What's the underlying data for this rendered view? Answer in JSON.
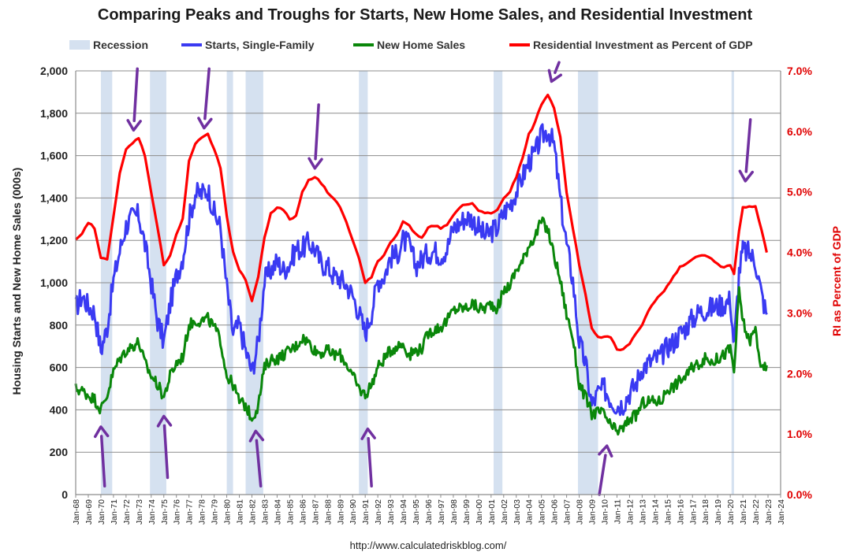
{
  "chart_data": {
    "type": "line",
    "title": "Comparing Peaks and Troughs for Starts, New Home Sales, and Residential Investment",
    "ylabel_left": "Housing Starts and New Home Sales (000s)",
    "ylabel_right": "RI as Percent of GDP",
    "source": "http://www.calculatedriskblog.com/",
    "ylim_left": [
      0,
      2000
    ],
    "ylim_right": [
      0,
      7
    ],
    "xlim": [
      1968,
      2024
    ],
    "grid": true,
    "legend_position": "top",
    "y_ticks_left": [
      "0",
      "200",
      "400",
      "600",
      "800",
      "1,000",
      "1,200",
      "1,400",
      "1,600",
      "1,800",
      "2,000"
    ],
    "y_ticks_right": [
      "0.0%",
      "1.0%",
      "2.0%",
      "3.0%",
      "4.0%",
      "5.0%",
      "6.0%",
      "7.0%"
    ],
    "x_ticks": [
      "Jan-68",
      "Jan-69",
      "Jan-70",
      "Jan-71",
      "Jan-72",
      "Jan-73",
      "Jan-74",
      "Jan-75",
      "Jan-76",
      "Jan-77",
      "Jan-78",
      "Jan-79",
      "Jan-80",
      "Jan-81",
      "Jan-82",
      "Jan-83",
      "Jan-84",
      "Jan-85",
      "Jan-86",
      "Jan-87",
      "Jan-88",
      "Jan-89",
      "Jan-90",
      "Jan-91",
      "Jan-92",
      "Jan-93",
      "Jan-94",
      "Jan-95",
      "Jan-96",
      "Jan-97",
      "Jan-98",
      "Jan-99",
      "Jan-00",
      "Jan-01",
      "Jan-02",
      "Jan-03",
      "Jan-04",
      "Jan-05",
      "Jan-06",
      "Jan-07",
      "Jan-08",
      "Jan-09",
      "Jan-10",
      "Jan-11",
      "Jan-12",
      "Jan-13",
      "Jan-14",
      "Jan-15",
      "Jan-16",
      "Jan-17",
      "Jan-18",
      "Jan-19",
      "Jan-20",
      "Jan-21",
      "Jan-22",
      "Jan-23",
      "Jan-24"
    ],
    "recessions": [
      [
        1970.0,
        1970.9
      ],
      [
        1973.9,
        1975.2
      ],
      [
        1980.0,
        1980.5
      ],
      [
        1981.5,
        1982.9
      ],
      [
        1990.5,
        1991.2
      ],
      [
        2001.2,
        2001.9
      ],
      [
        2007.9,
        2009.5
      ],
      [
        2020.1,
        2020.3
      ]
    ],
    "series": [
      {
        "name": "Starts, Single-Family",
        "axis": "left",
        "color": "#3a3af2",
        "x": [
          1968.0,
          1968.5,
          1969.0,
          1969.5,
          1970.0,
          1970.5,
          1971.0,
          1971.5,
          1972.0,
          1972.5,
          1973.0,
          1973.5,
          1974.0,
          1974.5,
          1975.0,
          1975.5,
          1976.0,
          1976.5,
          1977.0,
          1977.5,
          1978.0,
          1978.5,
          1979.0,
          1979.5,
          1980.0,
          1980.5,
          1981.0,
          1981.5,
          1982.0,
          1982.5,
          1983.0,
          1983.5,
          1984.0,
          1984.5,
          1985.0,
          1985.5,
          1986.0,
          1986.5,
          1987.0,
          1987.5,
          1988.0,
          1988.5,
          1989.0,
          1989.5,
          1990.0,
          1990.5,
          1991.0,
          1991.5,
          1992.0,
          1992.5,
          1993.0,
          1993.5,
          1994.0,
          1994.5,
          1995.0,
          1995.5,
          1996.0,
          1996.5,
          1997.0,
          1997.5,
          1998.0,
          1998.5,
          1999.0,
          1999.5,
          2000.0,
          2000.5,
          2001.0,
          2001.5,
          2002.0,
          2002.5,
          2003.0,
          2003.5,
          2004.0,
          2004.5,
          2005.0,
          2005.5,
          2006.0,
          2006.5,
          2007.0,
          2007.5,
          2008.0,
          2008.5,
          2009.0,
          2009.5,
          2010.0,
          2010.5,
          2011.0,
          2011.5,
          2012.0,
          2012.5,
          2013.0,
          2013.5,
          2014.0,
          2014.5,
          2015.0,
          2015.5,
          2016.0,
          2016.5,
          2017.0,
          2017.5,
          2018.0,
          2018.5,
          2019.0,
          2019.5,
          2020.0,
          2020.3,
          2020.7,
          2021.0,
          2021.5,
          2022.0,
          2022.5,
          2022.9
        ],
        "values": [
          880,
          940,
          890,
          860,
          680,
          790,
          1010,
          1150,
          1270,
          1310,
          1320,
          1180,
          1000,
          820,
          720,
          900,
          1030,
          1120,
          1300,
          1420,
          1420,
          1440,
          1330,
          1260,
          980,
          760,
          800,
          680,
          580,
          720,
          1010,
          1060,
          1100,
          1060,
          1090,
          1160,
          1160,
          1190,
          1160,
          1090,
          1080,
          1030,
          1020,
          990,
          940,
          860,
          760,
          860,
          1010,
          1030,
          1120,
          1130,
          1200,
          1180,
          1080,
          1110,
          1140,
          1150,
          1130,
          1160,
          1260,
          1280,
          1310,
          1300,
          1260,
          1220,
          1240,
          1260,
          1330,
          1370,
          1430,
          1500,
          1570,
          1610,
          1690,
          1720,
          1650,
          1390,
          1180,
          1010,
          720,
          620,
          420,
          480,
          500,
          450,
          420,
          430,
          480,
          520,
          600,
          620,
          640,
          650,
          700,
          720,
          760,
          790,
          830,
          860,
          870,
          880,
          890,
          900,
          920,
          700,
          1050,
          1150,
          1140,
          1100,
          940,
          850
        ]
      },
      {
        "name": "New Home Sales",
        "axis": "left",
        "color": "#0a870a",
        "x": [
          1968.0,
          1968.5,
          1969.0,
          1969.5,
          1970.0,
          1970.5,
          1971.0,
          1971.5,
          1972.0,
          1972.5,
          1973.0,
          1973.5,
          1974.0,
          1974.5,
          1975.0,
          1975.5,
          1976.0,
          1976.5,
          1977.0,
          1977.5,
          1978.0,
          1978.5,
          1979.0,
          1979.5,
          1980.0,
          1980.5,
          1981.0,
          1981.5,
          1982.0,
          1982.5,
          1983.0,
          1983.5,
          1984.0,
          1984.5,
          1985.0,
          1985.5,
          1986.0,
          1986.5,
          1987.0,
          1987.5,
          1988.0,
          1988.5,
          1989.0,
          1989.5,
          1990.0,
          1990.5,
          1991.0,
          1991.5,
          1992.0,
          1992.5,
          1993.0,
          1993.5,
          1994.0,
          1994.5,
          1995.0,
          1995.5,
          1996.0,
          1996.5,
          1997.0,
          1997.5,
          1998.0,
          1998.5,
          1999.0,
          1999.5,
          2000.0,
          2000.5,
          2001.0,
          2001.5,
          2002.0,
          2002.5,
          2003.0,
          2003.5,
          2004.0,
          2004.5,
          2005.0,
          2005.5,
          2006.0,
          2006.5,
          2007.0,
          2007.5,
          2008.0,
          2008.5,
          2009.0,
          2009.5,
          2010.0,
          2010.5,
          2011.0,
          2011.5,
          2012.0,
          2012.5,
          2013.0,
          2013.5,
          2014.0,
          2014.5,
          2015.0,
          2015.5,
          2016.0,
          2016.5,
          2017.0,
          2017.5,
          2018.0,
          2018.5,
          2019.0,
          2019.5,
          2020.0,
          2020.3,
          2020.7,
          2021.0,
          2021.5,
          2022.0,
          2022.5,
          2022.9
        ],
        "values": [
          500,
          490,
          470,
          450,
          400,
          470,
          580,
          640,
          680,
          700,
          720,
          620,
          560,
          520,
          460,
          560,
          620,
          650,
          800,
          820,
          820,
          830,
          790,
          730,
          560,
          520,
          440,
          420,
          360,
          420,
          600,
          640,
          640,
          660,
          680,
          700,
          740,
          720,
          680,
          670,
          680,
          660,
          660,
          620,
          560,
          500,
          470,
          520,
          600,
          640,
          680,
          700,
          710,
          660,
          680,
          690,
          760,
          780,
          790,
          820,
          870,
          880,
          880,
          900,
          880,
          880,
          900,
          880,
          960,
          990,
          1060,
          1100,
          1180,
          1220,
          1290,
          1250,
          1130,
          1010,
          850,
          740,
          520,
          460,
          380,
          390,
          380,
          320,
          300,
          310,
          360,
          370,
          430,
          440,
          440,
          440,
          500,
          510,
          540,
          560,
          600,
          620,
          640,
          630,
          640,
          660,
          690,
          580,
          960,
          820,
          720,
          780,
          580,
          610
        ]
      },
      {
        "name": "Residential Investment as Percent of GDP",
        "axis": "right",
        "color": "#ff0000",
        "x": [
          1968.0,
          1968.5,
          1969.0,
          1969.5,
          1970.0,
          1970.5,
          1971.0,
          1971.5,
          1972.0,
          1972.5,
          1973.0,
          1973.5,
          1974.0,
          1974.5,
          1975.0,
          1975.5,
          1976.0,
          1976.5,
          1977.0,
          1977.5,
          1978.0,
          1978.5,
          1979.0,
          1979.5,
          1980.0,
          1980.5,
          1981.0,
          1981.5,
          1982.0,
          1982.5,
          1983.0,
          1983.5,
          1984.0,
          1984.5,
          1985.0,
          1985.5,
          1986.0,
          1986.5,
          1987.0,
          1987.5,
          1988.0,
          1988.5,
          1989.0,
          1989.5,
          1990.0,
          1990.5,
          1991.0,
          1991.5,
          1992.0,
          1992.5,
          1993.0,
          1993.5,
          1994.0,
          1994.5,
          1995.0,
          1995.5,
          1996.0,
          1996.5,
          1997.0,
          1997.5,
          1998.0,
          1998.5,
          1999.0,
          1999.5,
          2000.0,
          2000.5,
          2001.0,
          2001.5,
          2002.0,
          2002.5,
          2003.0,
          2003.5,
          2004.0,
          2004.5,
          2005.0,
          2005.5,
          2006.0,
          2006.5,
          2007.0,
          2007.5,
          2008.0,
          2008.5,
          2009.0,
          2009.5,
          2010.0,
          2010.5,
          2011.0,
          2011.5,
          2012.0,
          2012.5,
          2013.0,
          2013.5,
          2014.0,
          2014.5,
          2015.0,
          2015.5,
          2016.0,
          2016.5,
          2017.0,
          2017.5,
          2018.0,
          2018.5,
          2019.0,
          2019.5,
          2020.0,
          2020.3,
          2020.7,
          2021.0,
          2021.5,
          2022.0,
          2022.5,
          2022.9
        ],
        "values": [
          4.2,
          4.3,
          4.5,
          4.4,
          3.9,
          3.9,
          4.6,
          5.3,
          5.7,
          5.8,
          5.9,
          5.6,
          5.0,
          4.4,
          3.8,
          3.95,
          4.3,
          4.55,
          5.5,
          5.8,
          5.9,
          5.95,
          5.7,
          5.4,
          4.6,
          4.0,
          3.7,
          3.55,
          3.2,
          3.6,
          4.25,
          4.65,
          4.75,
          4.7,
          4.55,
          4.6,
          5.0,
          5.2,
          5.25,
          5.15,
          5.0,
          4.9,
          4.75,
          4.5,
          4.2,
          3.9,
          3.5,
          3.6,
          3.85,
          3.95,
          4.15,
          4.3,
          4.5,
          4.45,
          4.3,
          4.25,
          4.4,
          4.45,
          4.4,
          4.45,
          4.6,
          4.75,
          4.8,
          4.8,
          4.7,
          4.65,
          4.65,
          4.7,
          4.9,
          5.0,
          5.25,
          5.55,
          5.95,
          6.15,
          6.45,
          6.6,
          6.4,
          5.9,
          5.0,
          4.4,
          3.8,
          3.3,
          2.75,
          2.6,
          2.6,
          2.6,
          2.4,
          2.4,
          2.5,
          2.65,
          2.8,
          3.05,
          3.2,
          3.3,
          3.45,
          3.6,
          3.75,
          3.8,
          3.9,
          3.95,
          3.95,
          3.9,
          3.8,
          3.75,
          3.8,
          3.65,
          4.35,
          4.75,
          4.75,
          4.75,
          4.35,
          4.0
        ]
      }
    ],
    "annotations": [
      {
        "type": "arrow",
        "direction": "down",
        "from": [
          1972.9,
          2010
        ],
        "to": [
          1972.6,
          1720
        ]
      },
      {
        "type": "arrow",
        "direction": "down",
        "from": [
          1978.6,
          2010
        ],
        "to": [
          1978.2,
          1730
        ]
      },
      {
        "type": "arrow",
        "direction": "down",
        "from": [
          1987.3,
          1840
        ],
        "to": [
          1987.0,
          1540
        ]
      },
      {
        "type": "arrow",
        "direction": "down_left",
        "from": [
          2006.4,
          2040
        ],
        "to": [
          2005.8,
          1950
        ]
      },
      {
        "type": "arrow",
        "direction": "down",
        "from": [
          2021.6,
          1770
        ],
        "to": [
          2021.2,
          1480
        ]
      },
      {
        "type": "arrow",
        "direction": "up",
        "from": [
          1970.3,
          40
        ],
        "to": [
          1970.0,
          320
        ]
      },
      {
        "type": "arrow",
        "direction": "up",
        "from": [
          1975.3,
          80
        ],
        "to": [
          1975.0,
          370
        ]
      },
      {
        "type": "arrow",
        "direction": "up",
        "from": [
          1982.7,
          40
        ],
        "to": [
          1982.3,
          300
        ]
      },
      {
        "type": "arrow",
        "direction": "up",
        "from": [
          1991.5,
          40
        ],
        "to": [
          1991.2,
          310
        ]
      },
      {
        "type": "arrow",
        "direction": "up_right",
        "from": [
          2009.6,
          0
        ],
        "to": [
          2010.2,
          230
        ]
      }
    ]
  }
}
